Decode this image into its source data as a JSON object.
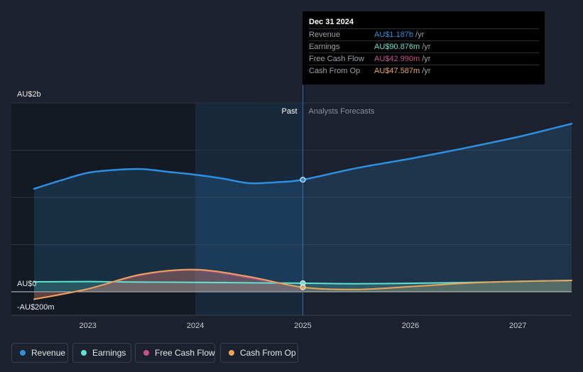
{
  "chart_data": {
    "type": "area",
    "y_axis": {
      "top_label": "AU$2b",
      "zero_label": "AU$0",
      "bottom_label": "-AU$200m",
      "ylim": [
        -200,
        2000
      ],
      "unit": "AU$m"
    },
    "x_axis": {
      "ticks": [
        "2023",
        "2024",
        "2025",
        "2026",
        "2027"
      ],
      "range": [
        2022.5,
        2027.5
      ]
    },
    "divider": {
      "x": 2025.0,
      "past_label": "Past",
      "forecast_label": "Analysts Forecasts"
    },
    "highlight_range": [
      2024.0,
      2025.0
    ],
    "series": [
      {
        "name": "Revenue",
        "color": "#2e8fe0",
        "points": [
          [
            2022.5,
            1090
          ],
          [
            2022.75,
            1180
          ],
          [
            2023.0,
            1260
          ],
          [
            2023.25,
            1290
          ],
          [
            2023.5,
            1300
          ],
          [
            2023.75,
            1270
          ],
          [
            2024.0,
            1240
          ],
          [
            2024.25,
            1200
          ],
          [
            2024.5,
            1150
          ],
          [
            2024.75,
            1160
          ],
          [
            2025.0,
            1187
          ],
          [
            2025.5,
            1310
          ],
          [
            2026.0,
            1410
          ],
          [
            2026.5,
            1520
          ],
          [
            2027.0,
            1640
          ],
          [
            2027.5,
            1780
          ]
        ],
        "forecast_from": 2025.0
      },
      {
        "name": "Earnings",
        "color": "#5fe3d0",
        "points": [
          [
            2022.5,
            105
          ],
          [
            2023.0,
            108
          ],
          [
            2023.5,
            102
          ],
          [
            2024.0,
            100
          ],
          [
            2024.5,
            95
          ],
          [
            2025.0,
            90.9
          ],
          [
            2025.5,
            85
          ],
          [
            2026.0,
            90
          ],
          [
            2026.5,
            98
          ],
          [
            2027.0,
            110
          ],
          [
            2027.5,
            120
          ]
        ],
        "forecast_from": 2025.0
      },
      {
        "name": "Free Cash Flow",
        "color": "#c94f8e",
        "points": [
          [
            2022.5,
            -80
          ],
          [
            2023.0,
            30
          ],
          [
            2023.5,
            180
          ],
          [
            2024.0,
            230
          ],
          [
            2024.5,
            150
          ],
          [
            2025.0,
            43
          ]
        ]
      },
      {
        "name": "Cash From Op",
        "color": "#e8a55a",
        "points": [
          [
            2022.5,
            -80
          ],
          [
            2023.0,
            30
          ],
          [
            2023.5,
            185
          ],
          [
            2024.0,
            235
          ],
          [
            2024.5,
            160
          ],
          [
            2025.0,
            47.6
          ],
          [
            2025.5,
            25
          ],
          [
            2026.0,
            55
          ],
          [
            2026.5,
            90
          ],
          [
            2027.0,
            110
          ],
          [
            2027.5,
            120
          ]
        ],
        "forecast_from": 2025.0
      }
    ]
  },
  "tooltip": {
    "date": "Dec 31 2024",
    "rows": [
      {
        "label": "Revenue",
        "value": "AU$1.187b",
        "unit": "/yr",
        "color": "#2e8fe0"
      },
      {
        "label": "Earnings",
        "value": "AU$90.876m",
        "unit": "/yr",
        "color": "#5fe3d0"
      },
      {
        "label": "Free Cash Flow",
        "value": "AU$42.990m",
        "unit": "/yr",
        "color": "#c94f8e"
      },
      {
        "label": "Cash From Op",
        "value": "AU$47.587m",
        "unit": "/yr",
        "color": "#e8a55a"
      }
    ]
  },
  "legend": [
    {
      "label": "Revenue",
      "color": "#2e8fe0"
    },
    {
      "label": "Earnings",
      "color": "#5fe3d0"
    },
    {
      "label": "Free Cash Flow",
      "color": "#c94f8e"
    },
    {
      "label": "Cash From Op",
      "color": "#e8a55a"
    }
  ]
}
